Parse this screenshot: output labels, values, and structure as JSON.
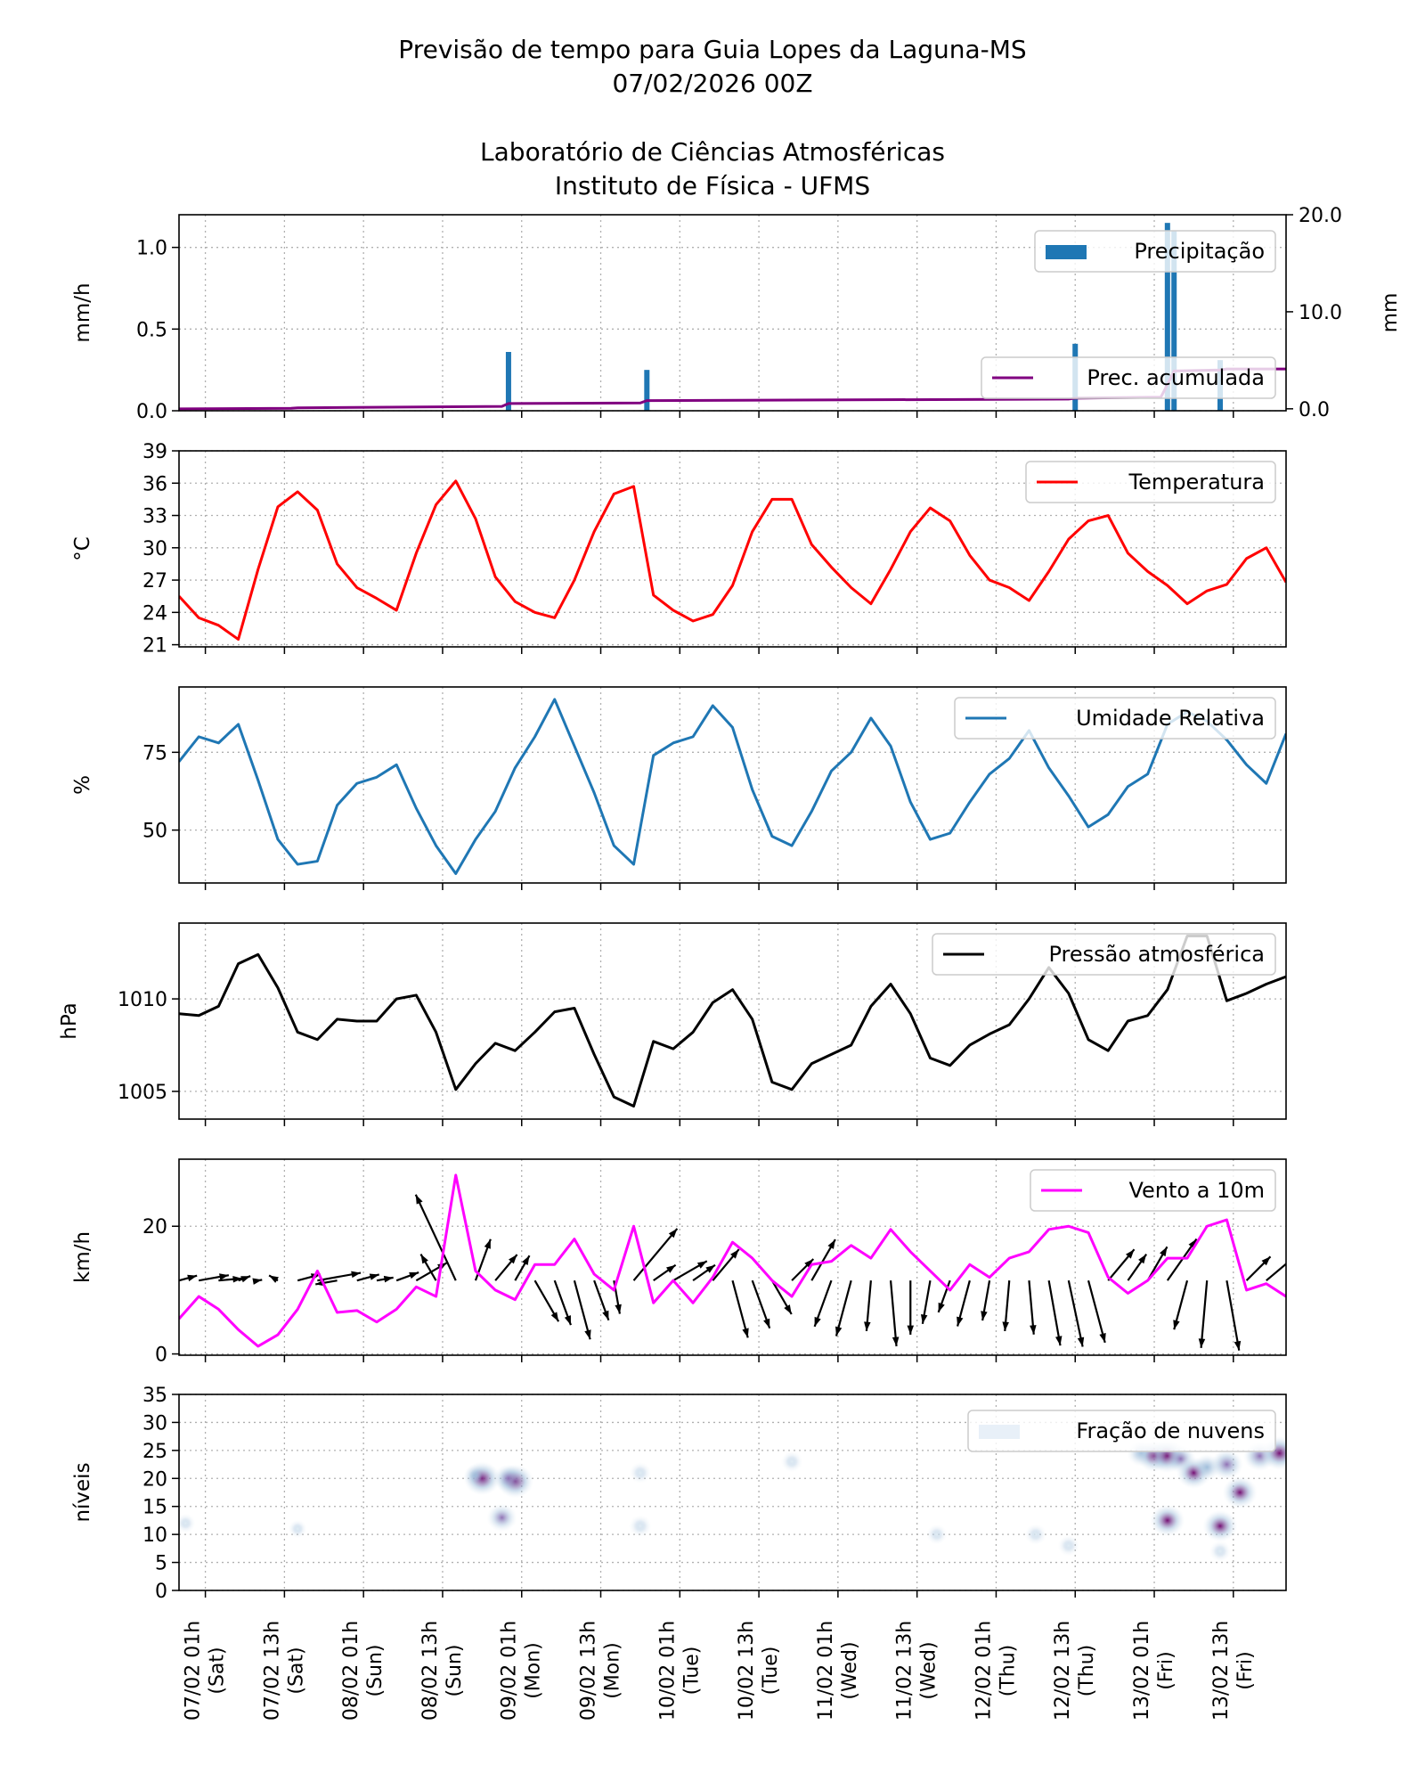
{
  "header": {
    "title_line1": "Previsão de tempo para Guia Lopes da Laguna-MS",
    "title_line2": "07/02/2026 00Z",
    "subtitle_line1": "Laboratório de Ciências Atmosféricas",
    "subtitle_line2": "Instituto de Física - UFMS"
  },
  "x_axis": {
    "xlim": [
      "2026-02-06 21:00",
      "2026-02-13 21:00"
    ],
    "ticks": [
      {
        "x": "2026-02-07 01:00",
        "label": "07/02 01h",
        "day": "(Sat)"
      },
      {
        "x": "2026-02-07 13:00",
        "label": "07/02 13h",
        "day": "(Sat)"
      },
      {
        "x": "2026-02-08 01:00",
        "label": "08/02 01h",
        "day": "(Sun)"
      },
      {
        "x": "2026-02-08 13:00",
        "label": "08/02 13h",
        "day": "(Sun)"
      },
      {
        "x": "2026-02-09 01:00",
        "label": "09/02 01h",
        "day": "(Mon)"
      },
      {
        "x": "2026-02-09 13:00",
        "label": "09/02 13h",
        "day": "(Mon)"
      },
      {
        "x": "2026-02-10 01:00",
        "label": "10/02 01h",
        "day": "(Tue)"
      },
      {
        "x": "2026-02-10 13:00",
        "label": "10/02 13h",
        "day": "(Tue)"
      },
      {
        "x": "2026-02-11 01:00",
        "label": "11/02 01h",
        "day": "(Wed)"
      },
      {
        "x": "2026-02-11 13:00",
        "label": "11/02 13h",
        "day": "(Wed)"
      },
      {
        "x": "2026-02-12 01:00",
        "label": "12/02 01h",
        "day": "(Thu)"
      },
      {
        "x": "2026-02-12 13:00",
        "label": "12/02 13h",
        "day": "(Thu)"
      },
      {
        "x": "2026-02-13 01:00",
        "label": "13/02 01h",
        "day": "(Fri)"
      },
      {
        "x": "2026-02-13 13:00",
        "label": "13/02 13h",
        "day": "(Fri)"
      }
    ]
  },
  "times": [
    "2026-02-06 21:00",
    "2026-02-07 00:00",
    "2026-02-07 03:00",
    "2026-02-07 06:00",
    "2026-02-07 09:00",
    "2026-02-07 12:00",
    "2026-02-07 15:00",
    "2026-02-07 18:00",
    "2026-02-07 21:00",
    "2026-02-08 00:00",
    "2026-02-08 03:00",
    "2026-02-08 06:00",
    "2026-02-08 09:00",
    "2026-02-08 12:00",
    "2026-02-08 15:00",
    "2026-02-08 18:00",
    "2026-02-08 21:00",
    "2026-02-09 00:00",
    "2026-02-09 03:00",
    "2026-02-09 06:00",
    "2026-02-09 09:00",
    "2026-02-09 12:00",
    "2026-02-09 15:00",
    "2026-02-09 18:00",
    "2026-02-09 21:00",
    "2026-02-10 00:00",
    "2026-02-10 03:00",
    "2026-02-10 06:00",
    "2026-02-10 09:00",
    "2026-02-10 12:00",
    "2026-02-10 15:00",
    "2026-02-10 18:00",
    "2026-02-10 21:00",
    "2026-02-11 00:00",
    "2026-02-11 03:00",
    "2026-02-11 06:00",
    "2026-02-11 09:00",
    "2026-02-11 12:00",
    "2026-02-11 15:00",
    "2026-02-11 18:00",
    "2026-02-11 21:00",
    "2026-02-12 00:00",
    "2026-02-12 03:00",
    "2026-02-12 06:00",
    "2026-02-12 09:00",
    "2026-02-12 12:00",
    "2026-02-12 15:00",
    "2026-02-12 18:00",
    "2026-02-12 21:00",
    "2026-02-13 00:00",
    "2026-02-13 03:00",
    "2026-02-13 06:00",
    "2026-02-13 09:00",
    "2026-02-13 12:00",
    "2026-02-13 15:00",
    "2026-02-13 18:00",
    "2026-02-13 21:00"
  ],
  "chart_data": [
    {
      "type": "bar",
      "ylabel": "mm/h",
      "ylim": [
        0,
        1.2
      ],
      "yticks": [
        "0.0",
        "0.5",
        "1.0"
      ],
      "grid": true,
      "legend": "top-right",
      "bars": {
        "name": "Precipitação",
        "color": "#1f77b4",
        "x": [
          "2026-02-08 23:00",
          "2026-02-09 20:00",
          "2026-02-12 13:00",
          "2026-02-13 03:00",
          "2026-02-13 04:00",
          "2026-02-13 11:00"
        ],
        "values": [
          0.36,
          0.25,
          0.41,
          1.15,
          1.1,
          0.31
        ]
      },
      "secondary_axis": {
        "ylabel": "mm",
        "ylim": [
          -0.2,
          20
        ],
        "yticks": [
          "0.0",
          "10.0",
          "20.0"
        ],
        "legend": "right",
        "series": {
          "name": "Prec. acumulada",
          "color": "#800080",
          "x": [
            "2026-02-06 21:00",
            "2026-02-07 14:00",
            "2026-02-07 15:00",
            "2026-02-08 22:00",
            "2026-02-08 23:00",
            "2026-02-09 19:00",
            "2026-02-09 20:00",
            "2026-02-12 12:00",
            "2026-02-12 13:00",
            "2026-02-13 02:00",
            "2026-02-13 03:00",
            "2026-02-13 04:00",
            "2026-02-13 11:00",
            "2026-02-13 12:00",
            "2026-02-13 21:00"
          ],
          "values": [
            0.0,
            0.05,
            0.1,
            0.25,
            0.55,
            0.6,
            0.85,
            1.0,
            1.1,
            1.2,
            2.5,
            3.9,
            4.0,
            4.1,
            4.1
          ]
        }
      }
    },
    {
      "type": "line",
      "ylabel": "$^\\circ$C",
      "ylabel_display": "°C",
      "ylim": [
        20.8,
        39
      ],
      "yticks": [
        "21",
        "24",
        "27",
        "30",
        "33",
        "36",
        "39"
      ],
      "grid": true,
      "legend": "top-right",
      "series": [
        {
          "name": "Temperatura",
          "color": "#ff0000",
          "values": [
            25.5,
            23.5,
            22.8,
            21.5,
            28,
            33.8,
            35.2,
            33.5,
            28.5,
            26.3,
            25.3,
            24.2,
            29.5,
            34,
            36.2,
            32.7,
            27.3,
            25,
            24,
            23.5,
            27,
            31.5,
            35,
            35.7,
            25.6,
            24.2,
            23.2,
            23.8,
            26.5,
            31.5,
            34.5,
            34.5,
            30.3,
            28.2,
            26.3,
            24.8,
            28,
            31.5,
            33.7,
            32.5,
            29.3,
            27,
            26.3,
            25.1,
            27.8,
            30.8,
            32.5,
            33,
            29.5,
            27.8,
            26.5,
            24.8,
            26,
            26.6,
            29,
            30,
            26.8
          ]
        }
      ]
    },
    {
      "type": "line",
      "ylabel": "%",
      "ylim": [
        33,
        96
      ],
      "yticks": [
        "50",
        "75"
      ],
      "grid": true,
      "legend": "top-right",
      "series": [
        {
          "name": "Umidade Relativa",
          "color": "#1f77b4",
          "values": [
            72,
            80,
            78,
            84,
            66,
            47,
            39,
            40,
            58,
            65,
            67,
            71,
            57,
            45,
            36,
            47,
            56,
            70,
            80,
            92,
            77,
            62,
            45,
            39,
            74,
            78,
            80,
            90,
            83,
            63,
            48,
            45,
            56,
            69,
            75,
            86,
            77,
            59,
            47,
            49,
            59,
            68,
            73,
            82,
            70,
            61,
            51,
            55,
            64,
            68,
            84,
            88,
            85,
            79,
            71,
            65,
            81
          ]
        }
      ]
    },
    {
      "type": "line",
      "ylabel": "hPa",
      "ylim": [
        1003.5,
        1014.1
      ],
      "yticks": [
        "1005",
        "1010"
      ],
      "grid": true,
      "legend": "top-right",
      "series": [
        {
          "name": "Pressão atmosférica",
          "color": "#000000",
          "values": [
            1009.2,
            1009.1,
            1009.6,
            1011.9,
            1012.4,
            1010.6,
            1008.2,
            1007.8,
            1008.9,
            1008.8,
            1008.8,
            1010.0,
            1010.2,
            1008.2,
            1005.1,
            1006.5,
            1007.6,
            1007.2,
            1008.2,
            1009.3,
            1009.5,
            1007.0,
            1004.7,
            1004.2,
            1007.7,
            1007.3,
            1008.2,
            1009.8,
            1010.5,
            1008.9,
            1005.5,
            1005.1,
            1006.5,
            1007.0,
            1007.5,
            1009.6,
            1010.8,
            1009.2,
            1006.8,
            1006.4,
            1007.5,
            1008.1,
            1008.6,
            1010.0,
            1011.7,
            1010.3,
            1007.8,
            1007.2,
            1008.8,
            1009.1,
            1010.5,
            1013.4,
            1013.4,
            1009.9,
            1010.3,
            1010.8,
            1011.2
          ]
        }
      ]
    },
    {
      "type": "line",
      "ylabel": "km/h",
      "ylim": [
        -0.2,
        30.5
      ],
      "yticks": [
        "0",
        "20"
      ],
      "grid": true,
      "legend": "top-right",
      "series": [
        {
          "name": "Vento a 10m",
          "color": "#ff00ff",
          "values": [
            5.5,
            9,
            7,
            3.8,
            1.2,
            3,
            7,
            13,
            6.5,
            6.8,
            5,
            7,
            10.5,
            9,
            28,
            13,
            10,
            8.5,
            14,
            14,
            18,
            12.5,
            10,
            20,
            8,
            11.5,
            8,
            12,
            17.5,
            15,
            11.5,
            9,
            14,
            14.5,
            17,
            15,
            19.5,
            16,
            13,
            10,
            14,
            12,
            15,
            16,
            19.5,
            20,
            19,
            12,
            9.5,
            11.5,
            15,
            15,
            20,
            21,
            10,
            11,
            9
          ]
        }
      ],
      "wind_arrows": {
        "color": "#000000",
        "direction_toward_deg": [
          75,
          80,
          85,
          70,
          80,
          300,
          75,
          80,
          260,
          75,
          80,
          70,
          60,
          330,
          335,
          20,
          40,
          30,
          150,
          160,
          165,
          160,
          170,
          40,
          55,
          60,
          55,
          40,
          165,
          160,
          150,
          45,
          30,
          200,
          195,
          185,
          175,
          180,
          190,
          200,
          195,
          190,
          185,
          175,
          170,
          168,
          165,
          40,
          35,
          30,
          35,
          195,
          185,
          170,
          45,
          50,
          55
        ]
      }
    },
    {
      "type": "heatmap",
      "ylabel": "níveis",
      "ylim": [
        0,
        35
      ],
      "yticks": [
        "0",
        "5",
        "10",
        "15",
        "20",
        "25",
        "30",
        "35"
      ],
      "grid": true,
      "legend": "top-right",
      "colormap": [
        "#e0ecf4",
        "#9ebcda",
        "#8c6bb1",
        "#6e016b"
      ],
      "legend_label": "Fração de nuvens",
      "cells": [
        [
          "2026-02-08 19:00",
          20,
          0.9
        ],
        [
          "2026-02-08 18:00",
          20.5,
          0.3
        ],
        [
          "2026-02-09 00:00",
          19.5,
          0.9
        ],
        [
          "2026-02-08 23:00",
          20,
          0.6
        ],
        [
          "2026-02-08 22:00",
          13,
          0.6
        ],
        [
          "2026-02-09 19:00",
          21,
          0.2
        ],
        [
          "2026-02-09 19:00",
          11.5,
          0.25
        ],
        [
          "2026-02-10 18:00",
          23,
          0.2
        ],
        [
          "2026-02-11 16:00",
          10,
          0.15
        ],
        [
          "2026-02-12 07:00",
          10,
          0.2
        ],
        [
          "2026-02-12 12:00",
          8,
          0.2
        ],
        [
          "2026-02-12 23:00",
          24.5,
          0.5
        ],
        [
          "2026-02-13 01:00",
          24,
          0.8
        ],
        [
          "2026-02-13 03:00",
          24,
          0.9
        ],
        [
          "2026-02-13 05:00",
          23.5,
          0.6
        ],
        [
          "2026-02-13 07:00",
          21,
          0.8
        ],
        [
          "2026-02-13 09:00",
          22,
          0.5
        ],
        [
          "2026-02-13 12:00",
          22.5,
          0.7
        ],
        [
          "2026-02-13 14:00",
          17.5,
          0.8
        ],
        [
          "2026-02-13 17:00",
          24,
          0.7
        ],
        [
          "2026-02-13 20:00",
          24.5,
          0.9
        ],
        [
          "2026-02-13 03:00",
          12.5,
          0.8
        ],
        [
          "2026-02-13 11:00",
          11.5,
          0.8
        ],
        [
          "2026-02-13 11:00",
          7,
          0.2
        ],
        [
          "2026-02-06 22:00",
          12,
          0.1
        ],
        [
          "2026-02-07 15:00",
          11,
          0.05
        ]
      ]
    }
  ]
}
